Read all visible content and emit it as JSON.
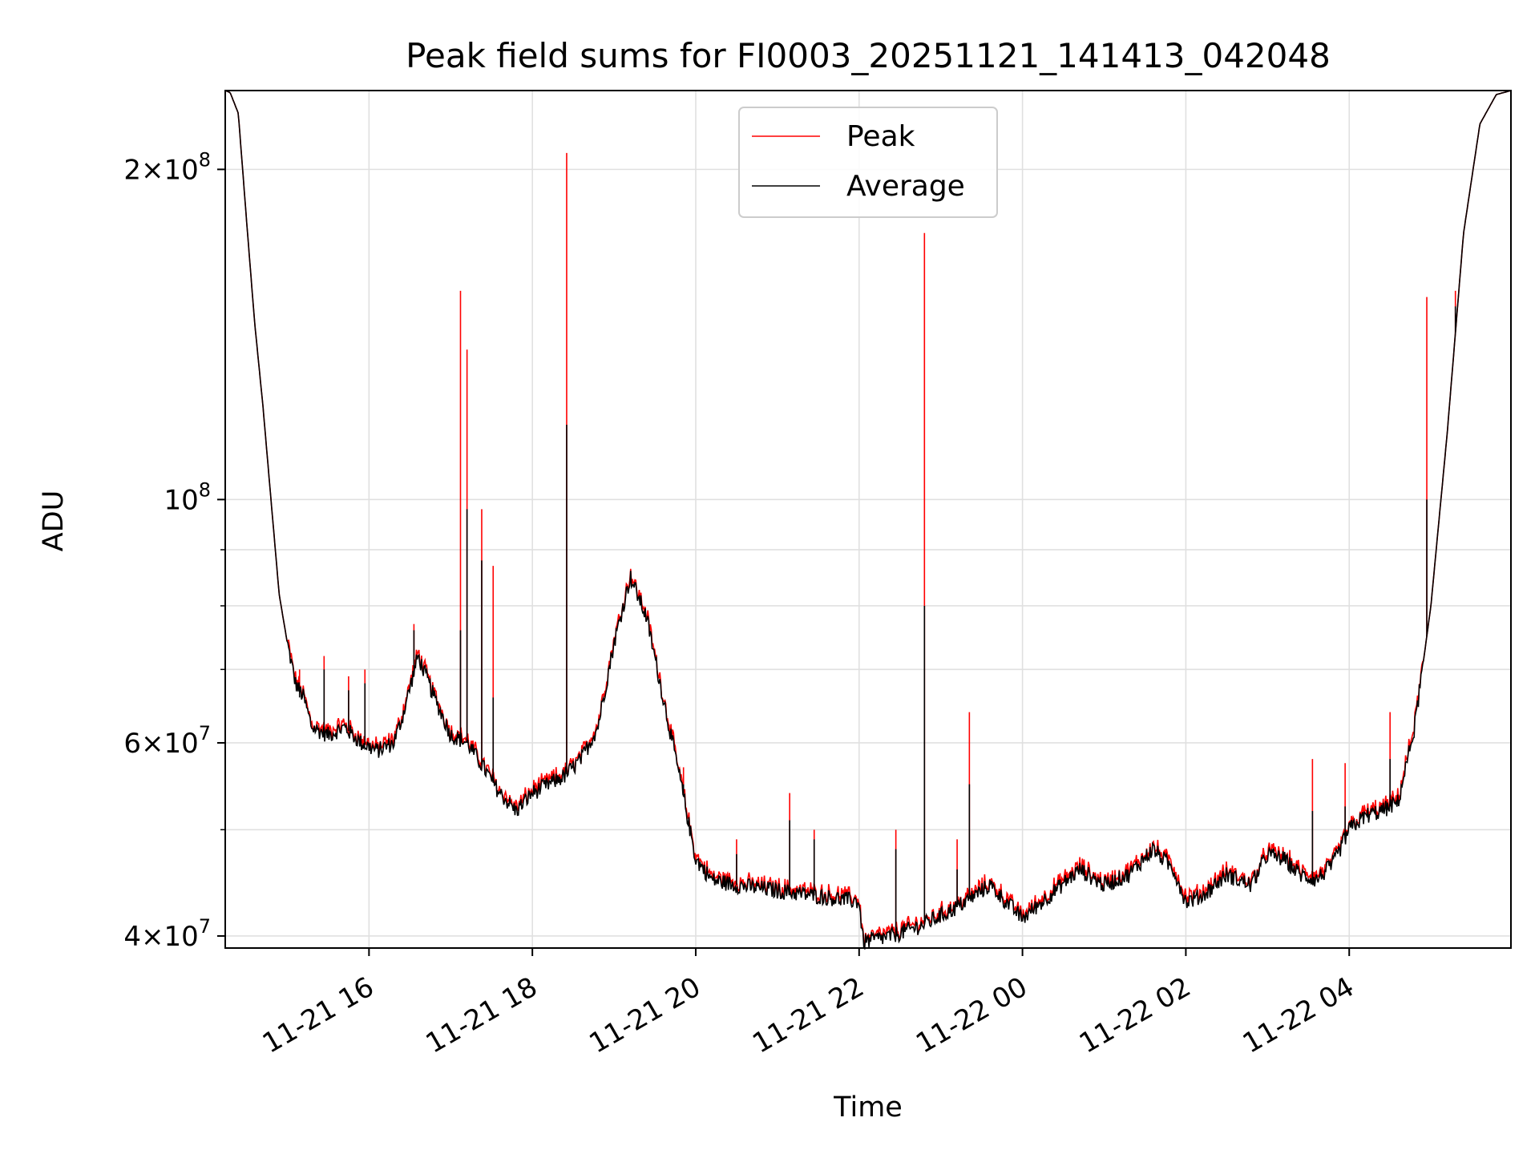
{
  "chart_data": {
    "type": "line",
    "title": "Peak field sums for FI0003_20251121_141413_042048",
    "xlabel": "Time",
    "ylabel": "ADU",
    "yscale": "log",
    "ylim": [
      39000000,
      236000000
    ],
    "xlim_hours": [
      14.24,
      29.98
    ],
    "grid": true,
    "legend_position": "upper center",
    "x_ticks": [
      {
        "hour": 16,
        "label": "11-21 16"
      },
      {
        "hour": 18,
        "label": "11-21 18"
      },
      {
        "hour": 20,
        "label": "11-21 20"
      },
      {
        "hour": 22,
        "label": "11-21 22"
      },
      {
        "hour": 24,
        "label": "11-22 00"
      },
      {
        "hour": 26,
        "label": "11-22 02"
      },
      {
        "hour": 28,
        "label": "11-22 04"
      }
    ],
    "y_ticks": [
      {
        "value": 40000000,
        "mant": "4",
        "exp": "7"
      },
      {
        "value": 60000000,
        "mant": "6",
        "exp": "7"
      },
      {
        "value": 100000000,
        "mant": "",
        "exp": "8"
      },
      {
        "value": 200000000,
        "mant": "2",
        "exp": "8"
      }
    ],
    "y_minor_ticks": [
      50000000,
      70000000,
      80000000,
      90000000,
      300000000
    ],
    "series": [
      {
        "name": "Peak",
        "color": "#ff0000"
      },
      {
        "name": "Average",
        "color": "#000000"
      }
    ],
    "average_curve": [
      [
        14.24,
        236000000
      ],
      [
        14.3,
        235000000
      ],
      [
        14.4,
        225000000
      ],
      [
        14.5,
        180000000
      ],
      [
        14.6,
        145000000
      ],
      [
        14.7,
        122000000
      ],
      [
        14.8,
        100000000
      ],
      [
        14.9,
        82000000
      ],
      [
        15.0,
        74000000
      ],
      [
        15.1,
        68000000
      ],
      [
        15.2,
        66000000
      ],
      [
        15.3,
        62000000
      ],
      [
        15.5,
        61000000
      ],
      [
        15.7,
        62000000
      ],
      [
        15.9,
        60000000
      ],
      [
        16.1,
        59000000
      ],
      [
        16.3,
        60000000
      ],
      [
        16.4,
        63000000
      ],
      [
        16.6,
        72000000
      ],
      [
        16.8,
        66000000
      ],
      [
        17.0,
        61000000
      ],
      [
        17.2,
        60000000
      ],
      [
        17.4,
        57000000
      ],
      [
        17.6,
        54000000
      ],
      [
        17.8,
        52000000
      ],
      [
        18.0,
        54000000
      ],
      [
        18.2,
        55000000
      ],
      [
        18.4,
        56000000
      ],
      [
        18.6,
        58000000
      ],
      [
        18.8,
        62000000
      ],
      [
        19.0,
        74000000
      ],
      [
        19.2,
        85000000
      ],
      [
        19.4,
        78000000
      ],
      [
        19.6,
        66000000
      ],
      [
        19.8,
        56000000
      ],
      [
        20.0,
        47000000
      ],
      [
        20.2,
        45000000
      ],
      [
        20.5,
        44500000
      ],
      [
        21.0,
        44000000
      ],
      [
        21.5,
        43500000
      ],
      [
        22.0,
        43000000
      ],
      [
        22.05,
        39500000
      ],
      [
        22.4,
        40000000
      ],
      [
        22.8,
        41000000
      ],
      [
        23.2,
        42500000
      ],
      [
        23.6,
        44500000
      ],
      [
        24.0,
        41500000
      ],
      [
        24.4,
        44000000
      ],
      [
        24.7,
        46000000
      ],
      [
        25.0,
        44500000
      ],
      [
        25.3,
        45500000
      ],
      [
        25.6,
        48000000
      ],
      [
        25.85,
        46000000
      ],
      [
        26.0,
        43000000
      ],
      [
        26.2,
        43500000
      ],
      [
        26.5,
        45500000
      ],
      [
        26.8,
        44500000
      ],
      [
        27.0,
        47500000
      ],
      [
        27.2,
        47000000
      ],
      [
        27.4,
        45500000
      ],
      [
        27.6,
        45000000
      ],
      [
        27.8,
        46500000
      ],
      [
        28.0,
        50000000
      ],
      [
        28.2,
        51500000
      ],
      [
        28.4,
        52000000
      ],
      [
        28.6,
        53000000
      ],
      [
        28.8,
        62000000
      ],
      [
        29.0,
        80000000
      ],
      [
        29.2,
        115000000
      ],
      [
        29.4,
        175000000
      ],
      [
        29.6,
        220000000
      ],
      [
        29.8,
        234000000
      ],
      [
        29.98,
        236000000
      ]
    ],
    "spikes": [
      {
        "hour": 15.15,
        "peak": 70000000,
        "avg": 66000000
      },
      {
        "hour": 15.45,
        "peak": 72000000,
        "avg": 70000000
      },
      {
        "hour": 15.75,
        "peak": 69000000,
        "avg": 67000000
      },
      {
        "hour": 15.95,
        "peak": 70000000,
        "avg": 68000000
      },
      {
        "hour": 16.55,
        "peak": 77000000,
        "avg": 76000000
      },
      {
        "hour": 17.12,
        "peak": 155000000,
        "avg": 76000000
      },
      {
        "hour": 17.2,
        "peak": 137000000,
        "avg": 98000000
      },
      {
        "hour": 17.38,
        "peak": 98000000,
        "avg": 88000000
      },
      {
        "hour": 17.52,
        "peak": 87000000,
        "avg": 66000000
      },
      {
        "hour": 18.42,
        "peak": 207000000,
        "avg": 117000000
      },
      {
        "hour": 19.85,
        "peak": 57000000,
        "avg": 55000000
      },
      {
        "hour": 20.5,
        "peak": 49000000,
        "avg": 47500000
      },
      {
        "hour": 21.15,
        "peak": 54000000,
        "avg": 51000000
      },
      {
        "hour": 21.45,
        "peak": 50000000,
        "avg": 49000000
      },
      {
        "hour": 22.45,
        "peak": 50000000,
        "avg": 48000000
      },
      {
        "hour": 22.8,
        "peak": 175000000,
        "avg": 80000000
      },
      {
        "hour": 23.2,
        "peak": 49000000,
        "avg": 46000000
      },
      {
        "hour": 23.35,
        "peak": 64000000,
        "avg": 55000000
      },
      {
        "hour": 27.55,
        "peak": 58000000,
        "avg": 52000000
      },
      {
        "hour": 27.95,
        "peak": 57500000,
        "avg": 52500000
      },
      {
        "hour": 28.5,
        "peak": 64000000,
        "avg": 58000000
      },
      {
        "hour": 28.95,
        "peak": 153000000,
        "avg": 100000000
      },
      {
        "hour": 29.3,
        "peak": 155000000,
        "avg": 150000000
      }
    ]
  }
}
